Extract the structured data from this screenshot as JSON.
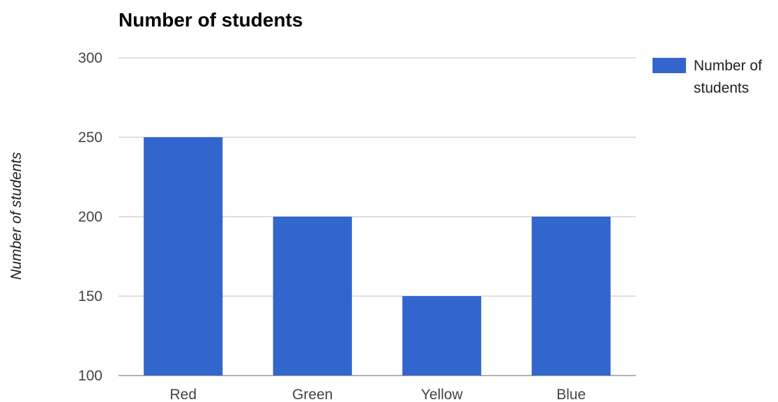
{
  "chart_data": {
    "type": "bar",
    "title": "Number of students",
    "xlabel": "",
    "ylabel": "Number of students",
    "categories": [
      "Red",
      "Green",
      "Yellow",
      "Blue"
    ],
    "series": [
      {
        "name": "Number of students",
        "legend_lines": [
          "Number of",
          "students"
        ],
        "values": [
          250,
          200,
          150,
          200
        ],
        "color": "#3366cc"
      }
    ],
    "ylim": [
      100,
      300
    ],
    "yticks": [
      100,
      150,
      200,
      250,
      300
    ],
    "grid": true,
    "legend_position": "right"
  }
}
